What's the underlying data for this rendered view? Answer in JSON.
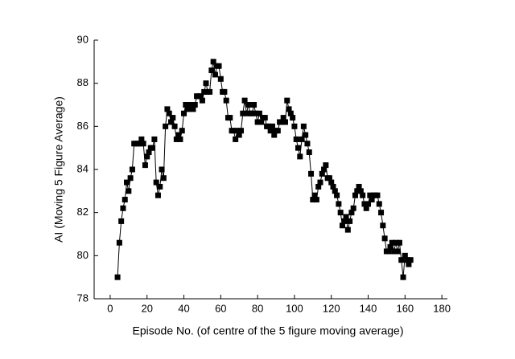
{
  "chart_data": {
    "type": "line",
    "x_label": "Episode No. (of centre of the 5 figure moving average)",
    "y_label": "AI (Moving 5 Figure Average)",
    "x": [
      4,
      5,
      6,
      7,
      8,
      9,
      10,
      11,
      12,
      13,
      14,
      15,
      16,
      17,
      18,
      19,
      20,
      21,
      22,
      23,
      24,
      25,
      26,
      27,
      28,
      29,
      30,
      31,
      32,
      33,
      34,
      35,
      36,
      37,
      38,
      39,
      40,
      41,
      42,
      43,
      44,
      45,
      46,
      47,
      48,
      49,
      50,
      51,
      52,
      53,
      54,
      55,
      56,
      57,
      58,
      59,
      60,
      61,
      62,
      63,
      64,
      65,
      66,
      67,
      68,
      69,
      70,
      71,
      72,
      73,
      74,
      75,
      76,
      77,
      78,
      79,
      80,
      81,
      82,
      83,
      84,
      85,
      86,
      87,
      88,
      89,
      90,
      91,
      92,
      93,
      94,
      95,
      96,
      97,
      98,
      99,
      100,
      101,
      102,
      103,
      104,
      105,
      106,
      107,
      108,
      109,
      110,
      111,
      112,
      113,
      114,
      115,
      116,
      117,
      118,
      119,
      120,
      121,
      122,
      123,
      124,
      125,
      126,
      127,
      128,
      129,
      130,
      131,
      132,
      133,
      134,
      135,
      136,
      137,
      138,
      139,
      140,
      141,
      142,
      143,
      144,
      145,
      146,
      147,
      148,
      149,
      150,
      151,
      152,
      153,
      154,
      155,
      156,
      157,
      158,
      159,
      160,
      161,
      162,
      163
    ],
    "series": [
      {
        "name": "AI",
        "color": "#000000",
        "values": [
          79.0,
          80.6,
          81.6,
          82.2,
          82.6,
          83.4,
          83.0,
          83.6,
          84.0,
          85.2,
          85.2,
          85.2,
          85.2,
          85.4,
          85.2,
          84.2,
          84.6,
          84.8,
          85.0,
          85.0,
          85.4,
          83.4,
          82.8,
          83.2,
          84.0,
          83.6,
          86.0,
          86.8,
          86.6,
          86.2,
          86.4,
          86.0,
          85.4,
          85.6,
          85.4,
          85.8,
          86.6,
          87.0,
          86.8,
          87.0,
          87.0,
          86.8,
          87.0,
          87.4,
          87.4,
          87.4,
          87.2,
          87.6,
          88.0,
          87.6,
          87.6,
          88.6,
          89.0,
          88.4,
          88.8,
          88.8,
          88.2,
          87.6,
          87.6,
          87.2,
          86.4,
          86.4,
          85.8,
          85.8,
          85.4,
          85.8,
          85.6,
          85.8,
          86.6,
          87.2,
          86.6,
          87.0,
          86.6,
          86.6,
          87.0,
          86.6,
          86.2,
          86.6,
          86.2,
          86.4,
          86.4,
          86.0,
          86.0,
          85.8,
          86.0,
          85.6,
          85.8,
          85.8,
          86.2,
          86.2,
          86.4,
          86.2,
          87.2,
          86.8,
          86.6,
          86.4,
          86.0,
          85.4,
          85.0,
          84.6,
          85.4,
          86.0,
          85.6,
          85.2,
          84.8,
          83.8,
          82.6,
          82.8,
          82.6,
          83.2,
          83.4,
          83.8,
          84.0,
          84.2,
          83.6,
          83.6,
          83.4,
          83.2,
          83.0,
          82.8,
          82.4,
          82.0,
          81.4,
          81.6,
          81.8,
          81.2,
          81.6,
          82.0,
          82.2,
          82.8,
          83.0,
          83.2,
          83.0,
          82.8,
          82.4,
          82.2,
          82.4,
          82.8,
          82.6,
          82.8,
          82.8,
          82.8,
          82.4,
          82.0,
          81.4,
          80.8,
          80.2,
          80.2,
          80.4,
          80.6,
          80.2,
          80.6,
          80.2,
          80.6,
          79.8,
          79.0,
          80.0,
          79.8,
          79.6,
          79.8
        ]
      }
    ],
    "xlim": [
      -8.7,
      183
    ],
    "xticks": [
      0,
      20,
      40,
      60,
      80,
      100,
      120,
      140,
      160,
      180
    ],
    "ylim": [
      78,
      90
    ],
    "yticks": [
      78,
      80,
      82,
      84,
      86,
      88,
      90
    ],
    "grid": false
  }
}
